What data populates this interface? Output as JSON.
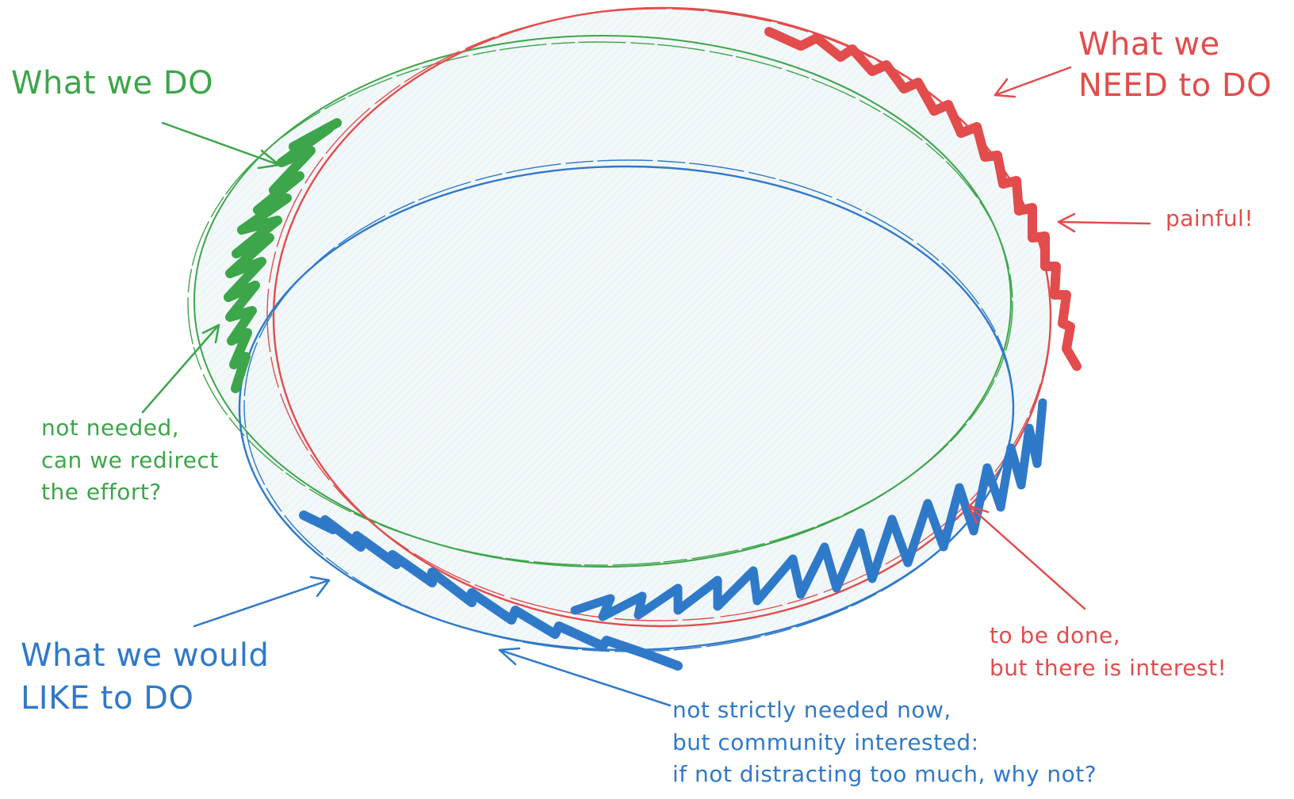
{
  "colors": {
    "green": "#3da54a",
    "red": "#e34c4c",
    "blue": "#2f79c9",
    "fill": "#eaf3f5"
  },
  "labels": {
    "what_we_do": "What we DO",
    "what_we_need_line1": "What we",
    "what_we_need_line2": "NEED to DO",
    "painful": "painful!",
    "not_needed_line1": "not needed,",
    "not_needed_line2": "can we redirect",
    "not_needed_line3": "the effort?",
    "what_we_like_line1": "What we would",
    "what_we_like_line2": "LIKE to DO",
    "to_be_done_line1": "to be done,",
    "to_be_done_line2": "but there is interest!",
    "community_line1": "not strictly needed now,",
    "community_line2": "but community interested:",
    "community_line3": "if not distracting too much, why not?"
  }
}
